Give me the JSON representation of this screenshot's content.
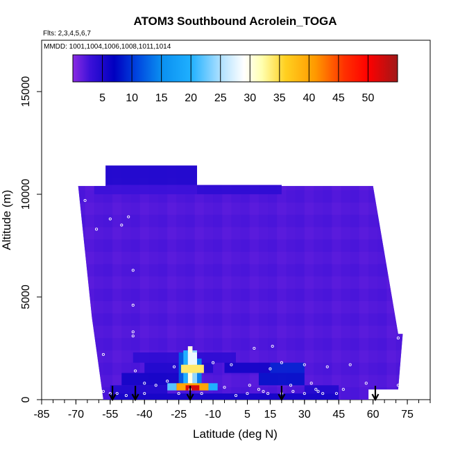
{
  "chart_data": {
    "type": "heatmap",
    "title": "ATOM3 Southbound Acrolein_TOGA",
    "flights_note": "Flts: 2,3,4,5,6,7",
    "dates_note": "MMDD: 1001,1004,1006,1008,1011,1014",
    "xlabel": "Latitude (deg N)",
    "ylabel": "Altitude (m)",
    "xlim": [
      -85,
      85
    ],
    "ylim": [
      0,
      17500
    ],
    "x_ticks": [
      -85,
      -70,
      -55,
      -40,
      -25,
      -10,
      5,
      15,
      30,
      45,
      60,
      75
    ],
    "x_tick_labels": [
      "-85",
      "-70",
      "-55",
      "-40",
      "-25",
      "-10",
      "5",
      "15",
      "30",
      "45",
      "60",
      "75"
    ],
    "x_minor_step": 5,
    "y_ticks": [
      0,
      5000,
      10000,
      15000
    ],
    "y_tick_labels": [
      "0",
      "5000",
      "10000",
      "15000"
    ],
    "colorbar": {
      "min": 0,
      "max": 55,
      "ticks": [
        5,
        10,
        15,
        20,
        25,
        30,
        35,
        40,
        45,
        50
      ],
      "tick_labels": [
        "5",
        "10",
        "15",
        "20",
        "25",
        "30",
        "35",
        "40",
        "45",
        "50"
      ],
      "stops": [
        {
          "v": 0,
          "c": "#8a2be2"
        },
        {
          "v": 3,
          "c": "#3a10d8"
        },
        {
          "v": 7,
          "c": "#0000c0"
        },
        {
          "v": 11,
          "c": "#0048e0"
        },
        {
          "v": 15,
          "c": "#0a8ff0"
        },
        {
          "v": 20,
          "c": "#1fb0ff"
        },
        {
          "v": 25,
          "c": "#aee0ff"
        },
        {
          "v": 29,
          "c": "#ffffff"
        },
        {
          "v": 32,
          "c": "#ffffb0"
        },
        {
          "v": 36,
          "c": "#ffd020"
        },
        {
          "v": 41,
          "c": "#ff9a00"
        },
        {
          "v": 46,
          "c": "#ff3000"
        },
        {
          "v": 50,
          "c": "#ff0000"
        },
        {
          "v": 55,
          "c": "#a01818"
        }
      ]
    },
    "background_value": 2,
    "domain_outline": [
      [
        -69,
        10400
      ],
      [
        -57,
        10400
      ],
      [
        -57,
        11400
      ],
      [
        -17,
        11400
      ],
      [
        -17,
        10450
      ],
      [
        20,
        10450
      ],
      [
        20,
        10400
      ],
      [
        60,
        10400
      ],
      [
        71,
        3200
      ],
      [
        73,
        3200
      ],
      [
        71,
        500
      ],
      [
        58,
        500
      ],
      [
        58,
        0
      ],
      [
        -58,
        0
      ],
      [
        -63,
        4000
      ]
    ],
    "dark_blocks": [
      {
        "lat": [
          -57,
          -17
        ],
        "alt": [
          10450,
          11400
        ],
        "value": 5
      },
      {
        "lat": [
          -17,
          20
        ],
        "alt": [
          10000,
          10450
        ],
        "value": 4
      },
      {
        "lat": [
          -62,
          -17
        ],
        "alt": [
          10000,
          10450
        ],
        "value": 3
      },
      {
        "lat": [
          -45,
          0
        ],
        "alt": [
          1800,
          2300
        ],
        "value": 4
      },
      {
        "lat": [
          -40,
          -10
        ],
        "alt": [
          1300,
          1800
        ],
        "value": 5
      },
      {
        "lat": [
          -5,
          15
        ],
        "alt": [
          1300,
          1800
        ],
        "value": 6
      },
      {
        "lat": [
          15,
          30
        ],
        "alt": [
          1300,
          1800
        ],
        "value": 9
      },
      {
        "lat": [
          -50,
          -25
        ],
        "alt": [
          700,
          1300
        ],
        "value": 6
      },
      {
        "lat": [
          10,
          30
        ],
        "alt": [
          700,
          1300
        ],
        "value": 8
      },
      {
        "lat": [
          -55,
          45
        ],
        "alt": [
          0,
          300
        ],
        "value": 6
      },
      {
        "lat": [
          30,
          45
        ],
        "alt": [
          300,
          700
        ],
        "value": 5
      },
      {
        "lat": [
          -55,
          -30
        ],
        "alt": [
          300,
          700
        ],
        "value": 5
      },
      {
        "lat": [
          -54.4,
          -54.0
        ],
        "alt": [
          11400,
          12000
        ],
        "value": 8
      }
    ],
    "plume": {
      "lat_center": -19,
      "columns": [
        {
          "lat": -24,
          "w": 2,
          "alt": [
            700,
            2300
          ],
          "value": 12
        },
        {
          "lat": -22,
          "w": 2,
          "alt": [
            500,
            2400
          ],
          "value": 20
        },
        {
          "lat": -20,
          "w": 2,
          "alt": [
            500,
            2600
          ],
          "value": 30
        },
        {
          "lat": -18,
          "w": 2,
          "alt": [
            500,
            2400
          ],
          "value": 24
        },
        {
          "lat": -16,
          "w": 2,
          "alt": [
            700,
            2000
          ],
          "value": 14
        }
      ],
      "layers": [
        {
          "lat": [
            -26,
            -12
          ],
          "alt": [
            450,
            800
          ],
          "value": 40
        },
        {
          "lat": [
            -22,
            -16
          ],
          "alt": [
            450,
            700
          ],
          "value": 52
        },
        {
          "lat": [
            -30,
            -26
          ],
          "alt": [
            450,
            800
          ],
          "value": 22
        },
        {
          "lat": [
            -12,
            -8
          ],
          "alt": [
            450,
            800
          ],
          "value": 20
        },
        {
          "lat": [
            -24,
            -14
          ],
          "alt": [
            1300,
            1700
          ],
          "value": 34
        },
        {
          "lat": [
            -21,
            -17
          ],
          "alt": [
            1700,
            2300
          ],
          "value": 28
        }
      ]
    },
    "arrows_lat": [
      -54,
      -44,
      -20,
      20,
      61
    ],
    "sample_points": [
      [
        -66,
        9700
      ],
      [
        -61,
        8300
      ],
      [
        -55,
        8800
      ],
      [
        -50,
        8500
      ],
      [
        -47,
        8900
      ],
      [
        -45,
        6300
      ],
      [
        -45,
        4600
      ],
      [
        -45,
        3100
      ],
      [
        -45,
        3300
      ],
      [
        -58,
        2200
      ],
      [
        -44,
        1400
      ],
      [
        -40,
        800
      ],
      [
        -35,
        700
      ],
      [
        -30,
        900
      ],
      [
        -27,
        1600
      ],
      [
        -10,
        1800
      ],
      [
        -2,
        1700
      ],
      [
        8,
        2500
      ],
      [
        16,
        2600
      ],
      [
        -5,
        600
      ],
      [
        0,
        200
      ],
      [
        6,
        700
      ],
      [
        12,
        400
      ],
      [
        15,
        1500
      ],
      [
        20,
        1800
      ],
      [
        24,
        700
      ],
      [
        30,
        1700
      ],
      [
        33,
        800
      ],
      [
        36,
        400
      ],
      [
        40,
        1600
      ],
      [
        44,
        300
      ],
      [
        50,
        1700
      ],
      [
        57,
        800
      ],
      [
        62,
        400
      ],
      [
        71,
        3000
      ],
      [
        71,
        700
      ],
      [
        -55,
        300
      ],
      [
        -52,
        300
      ],
      [
        -48,
        200
      ],
      [
        -40,
        300
      ],
      [
        -25,
        300
      ],
      [
        -15,
        300
      ],
      [
        5,
        300
      ],
      [
        14,
        300
      ],
      [
        20,
        300
      ],
      [
        25,
        400
      ],
      [
        30,
        300
      ],
      [
        38,
        300
      ],
      [
        -58,
        400
      ],
      [
        -20,
        500
      ],
      [
        10,
        500
      ],
      [
        35,
        500
      ],
      [
        47,
        500
      ]
    ]
  }
}
